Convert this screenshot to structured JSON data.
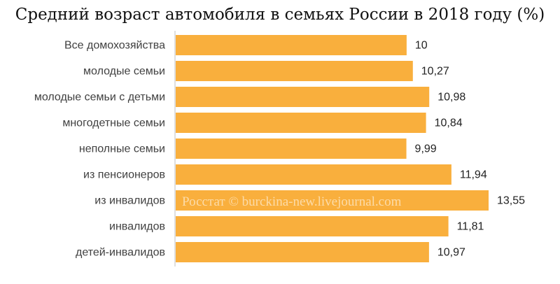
{
  "chart_data": {
    "type": "bar",
    "orientation": "horizontal",
    "title": "Средний возраст автомобиля в семьях России в 2018 году (%)",
    "categories": [
      "Все домохозяйства",
      "молодые семьи",
      "молодые семьи с детьми",
      "многодетные семьи",
      "неполные семьи",
      "из пенсионеров",
      "из инвалидов",
      "инвалидов",
      "детей-инвалидов"
    ],
    "values": [
      10,
      10.27,
      10.98,
      10.84,
      9.99,
      11.94,
      13.55,
      11.81,
      10.97
    ],
    "value_labels": [
      "10",
      "10,27",
      "10,98",
      "10,84",
      "9,99",
      "11,94",
      "13,55",
      "11,81",
      "10,97"
    ],
    "xlim": [
      0,
      13.55
    ],
    "grid": false,
    "legend": "none",
    "bar_color": "#F9AF3D",
    "watermark": "Росстат © burckina-new.livejournal.com"
  }
}
